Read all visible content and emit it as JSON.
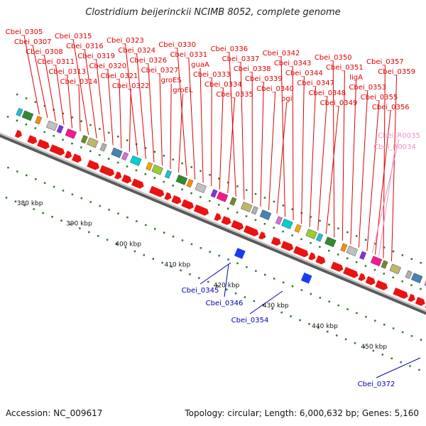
{
  "title": "Clostridium beijerinckii NCIMB 8052, complete genome",
  "footer": {
    "accession": "Accession: NC_009617",
    "topology": "Topology: circular; Length: 6,000,632 bp; Genes: 5,160"
  },
  "colors": {
    "forward_gene_label": "#e00000",
    "reverse_gene_label": "#0000b0",
    "rna_gene_label": "#f090c0",
    "cds_arrow": "#ee1111",
    "reverse_arrow": "#1a3cf0",
    "backbone": "#909090",
    "tick_marks": "#2a7a2a"
  },
  "kbp_ticks": [
    {
      "label": "380 kbp"
    },
    {
      "label": "390 kbp"
    },
    {
      "label": "400 kbp"
    },
    {
      "label": "410 kbp"
    },
    {
      "label": "420 kbp"
    },
    {
      "label": "430 kbp"
    },
    {
      "label": "440 kbp"
    },
    {
      "label": "450 kbp"
    }
  ],
  "forward_labels": [
    {
      "text": "Cbei_0305"
    },
    {
      "text": "Cbei_0307"
    },
    {
      "text": "Cbei_0308"
    },
    {
      "text": "Cbei_0311"
    },
    {
      "text": "Cbei_0313"
    },
    {
      "text": "Cbei_0314"
    },
    {
      "text": "Cbei_0315"
    },
    {
      "text": "Cbei_0316"
    },
    {
      "text": "Cbei_0319"
    },
    {
      "text": "Cbei_0320"
    },
    {
      "text": "Cbei_0321"
    },
    {
      "text": "Cbei_0322"
    },
    {
      "text": "Cbei_0323"
    },
    {
      "text": "Cbei_0324"
    },
    {
      "text": "Cbei_0326"
    },
    {
      "text": "Cbei_0327"
    },
    {
      "text": "groES"
    },
    {
      "text": "groEL"
    },
    {
      "text": "Cbei_0330"
    },
    {
      "text": "Cbei_0331"
    },
    {
      "text": "guaA"
    },
    {
      "text": "Cbei_0333"
    },
    {
      "text": "Cbei_0334"
    },
    {
      "text": "Cbei_0335"
    },
    {
      "text": "Cbei_0336"
    },
    {
      "text": "Cbei_0337"
    },
    {
      "text": "Cbei_0338"
    },
    {
      "text": "Cbei_0339"
    },
    {
      "text": "Cbei_0340"
    },
    {
      "text": "pgi"
    },
    {
      "text": "Cbei_0342"
    },
    {
      "text": "Cbei_0343"
    },
    {
      "text": "Cbei_0344"
    },
    {
      "text": "Cbei_0347"
    },
    {
      "text": "Cbei_0348"
    },
    {
      "text": "Cbei_0349"
    },
    {
      "text": "Cbei_0350"
    },
    {
      "text": "Cbei_0351"
    },
    {
      "text": "ligA"
    },
    {
      "text": "Cbei_0353"
    },
    {
      "text": "Cbei_0355"
    },
    {
      "text": "Cbei_0356"
    },
    {
      "text": "Cbei_0357"
    },
    {
      "text": "Cbei_0359"
    }
  ],
  "rna_labels": [
    {
      "text": "Cbei_R0035"
    },
    {
      "text": "Cbei_R0034"
    }
  ],
  "reverse_labels": [
    {
      "text": "Cbei_0345"
    },
    {
      "text": "Cbei_0346"
    },
    {
      "text": "Cbei_0354"
    },
    {
      "text": "Cbei_0372"
    }
  ]
}
